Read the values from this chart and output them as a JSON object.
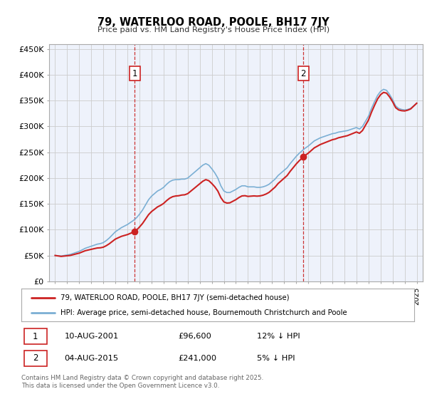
{
  "title": "79, WATERLOO ROAD, POOLE, BH17 7JY",
  "subtitle": "Price paid vs. HM Land Registry's House Price Index (HPI)",
  "ylim": [
    0,
    460000
  ],
  "yticks": [
    0,
    50000,
    100000,
    150000,
    200000,
    250000,
    300000,
    350000,
    400000,
    450000
  ],
  "ytick_labels": [
    "£0",
    "£50K",
    "£100K",
    "£150K",
    "£200K",
    "£250K",
    "£300K",
    "£350K",
    "£400K",
    "£450K"
  ],
  "xlim_start": 1994.5,
  "xlim_end": 2025.5,
  "plot_bg_color": "#eef2fb",
  "grid_color": "#cccccc",
  "hpi_color": "#7bafd4",
  "price_color": "#cc2222",
  "marker_color": "#cc2222",
  "vline_color": "#cc3333",
  "sale1_x": 2001.6,
  "sale1_y": 96600,
  "sale2_x": 2015.6,
  "sale2_y": 241000,
  "sale1_date": "10-AUG-2001",
  "sale1_price": "£96,600",
  "sale1_hpi": "12% ↓ HPI",
  "sale2_date": "04-AUG-2015",
  "sale2_price": "£241,000",
  "sale2_hpi": "5% ↓ HPI",
  "legend_label1": "79, WATERLOO ROAD, POOLE, BH17 7JY (semi-detached house)",
  "legend_label2": "HPI: Average price, semi-detached house, Bournemouth Christchurch and Poole",
  "footer": "Contains HM Land Registry data © Crown copyright and database right 2025.\nThis data is licensed under the Open Government Licence v3.0.",
  "hpi_data_x": [
    1995.0,
    1995.25,
    1995.5,
    1995.75,
    1996.0,
    1996.25,
    1996.5,
    1996.75,
    1997.0,
    1997.25,
    1997.5,
    1997.75,
    1998.0,
    1998.25,
    1998.5,
    1998.75,
    1999.0,
    1999.25,
    1999.5,
    1999.75,
    2000.0,
    2000.25,
    2000.5,
    2000.75,
    2001.0,
    2001.25,
    2001.5,
    2001.75,
    2002.0,
    2002.25,
    2002.5,
    2002.75,
    2003.0,
    2003.25,
    2003.5,
    2003.75,
    2004.0,
    2004.25,
    2004.5,
    2004.75,
    2005.0,
    2005.25,
    2005.5,
    2005.75,
    2006.0,
    2006.25,
    2006.5,
    2006.75,
    2007.0,
    2007.25,
    2007.5,
    2007.75,
    2008.0,
    2008.25,
    2008.5,
    2008.75,
    2009.0,
    2009.25,
    2009.5,
    2009.75,
    2010.0,
    2010.25,
    2010.5,
    2010.75,
    2011.0,
    2011.25,
    2011.5,
    2011.75,
    2012.0,
    2012.25,
    2012.5,
    2012.75,
    2013.0,
    2013.25,
    2013.5,
    2013.75,
    2014.0,
    2014.25,
    2014.5,
    2014.75,
    2015.0,
    2015.25,
    2015.5,
    2015.75,
    2016.0,
    2016.25,
    2016.5,
    2016.75,
    2017.0,
    2017.25,
    2017.5,
    2017.75,
    2018.0,
    2018.25,
    2018.5,
    2018.75,
    2019.0,
    2019.25,
    2019.5,
    2019.75,
    2020.0,
    2020.25,
    2020.5,
    2020.75,
    2021.0,
    2021.25,
    2021.5,
    2021.75,
    2022.0,
    2022.25,
    2022.5,
    2022.75,
    2023.0,
    2023.25,
    2023.5,
    2023.75,
    2024.0,
    2024.25,
    2024.5,
    2024.75,
    2025.0
  ],
  "hpi_data_y": [
    50000,
    49500,
    49000,
    50000,
    51000,
    52000,
    54000,
    56000,
    58000,
    61000,
    64000,
    66000,
    68000,
    70000,
    72000,
    73000,
    75000,
    79000,
    84000,
    90000,
    96000,
    100000,
    104000,
    107000,
    110000,
    114000,
    118000,
    123000,
    130000,
    138000,
    148000,
    158000,
    165000,
    170000,
    175000,
    178000,
    182000,
    188000,
    193000,
    196000,
    197000,
    197000,
    198000,
    198000,
    200000,
    205000,
    210000,
    215000,
    220000,
    225000,
    228000,
    225000,
    218000,
    210000,
    200000,
    185000,
    175000,
    172000,
    172000,
    175000,
    178000,
    182000,
    185000,
    185000,
    183000,
    183000,
    183000,
    182000,
    182000,
    183000,
    185000,
    188000,
    193000,
    198000,
    205000,
    210000,
    215000,
    220000,
    228000,
    235000,
    242000,
    248000,
    253000,
    258000,
    262000,
    267000,
    272000,
    275000,
    278000,
    280000,
    282000,
    284000,
    286000,
    287000,
    289000,
    290000,
    291000,
    292000,
    294000,
    296000,
    298000,
    295000,
    300000,
    310000,
    320000,
    335000,
    348000,
    360000,
    368000,
    372000,
    370000,
    362000,
    352000,
    340000,
    335000,
    333000,
    332000,
    333000,
    335000,
    340000,
    345000
  ]
}
